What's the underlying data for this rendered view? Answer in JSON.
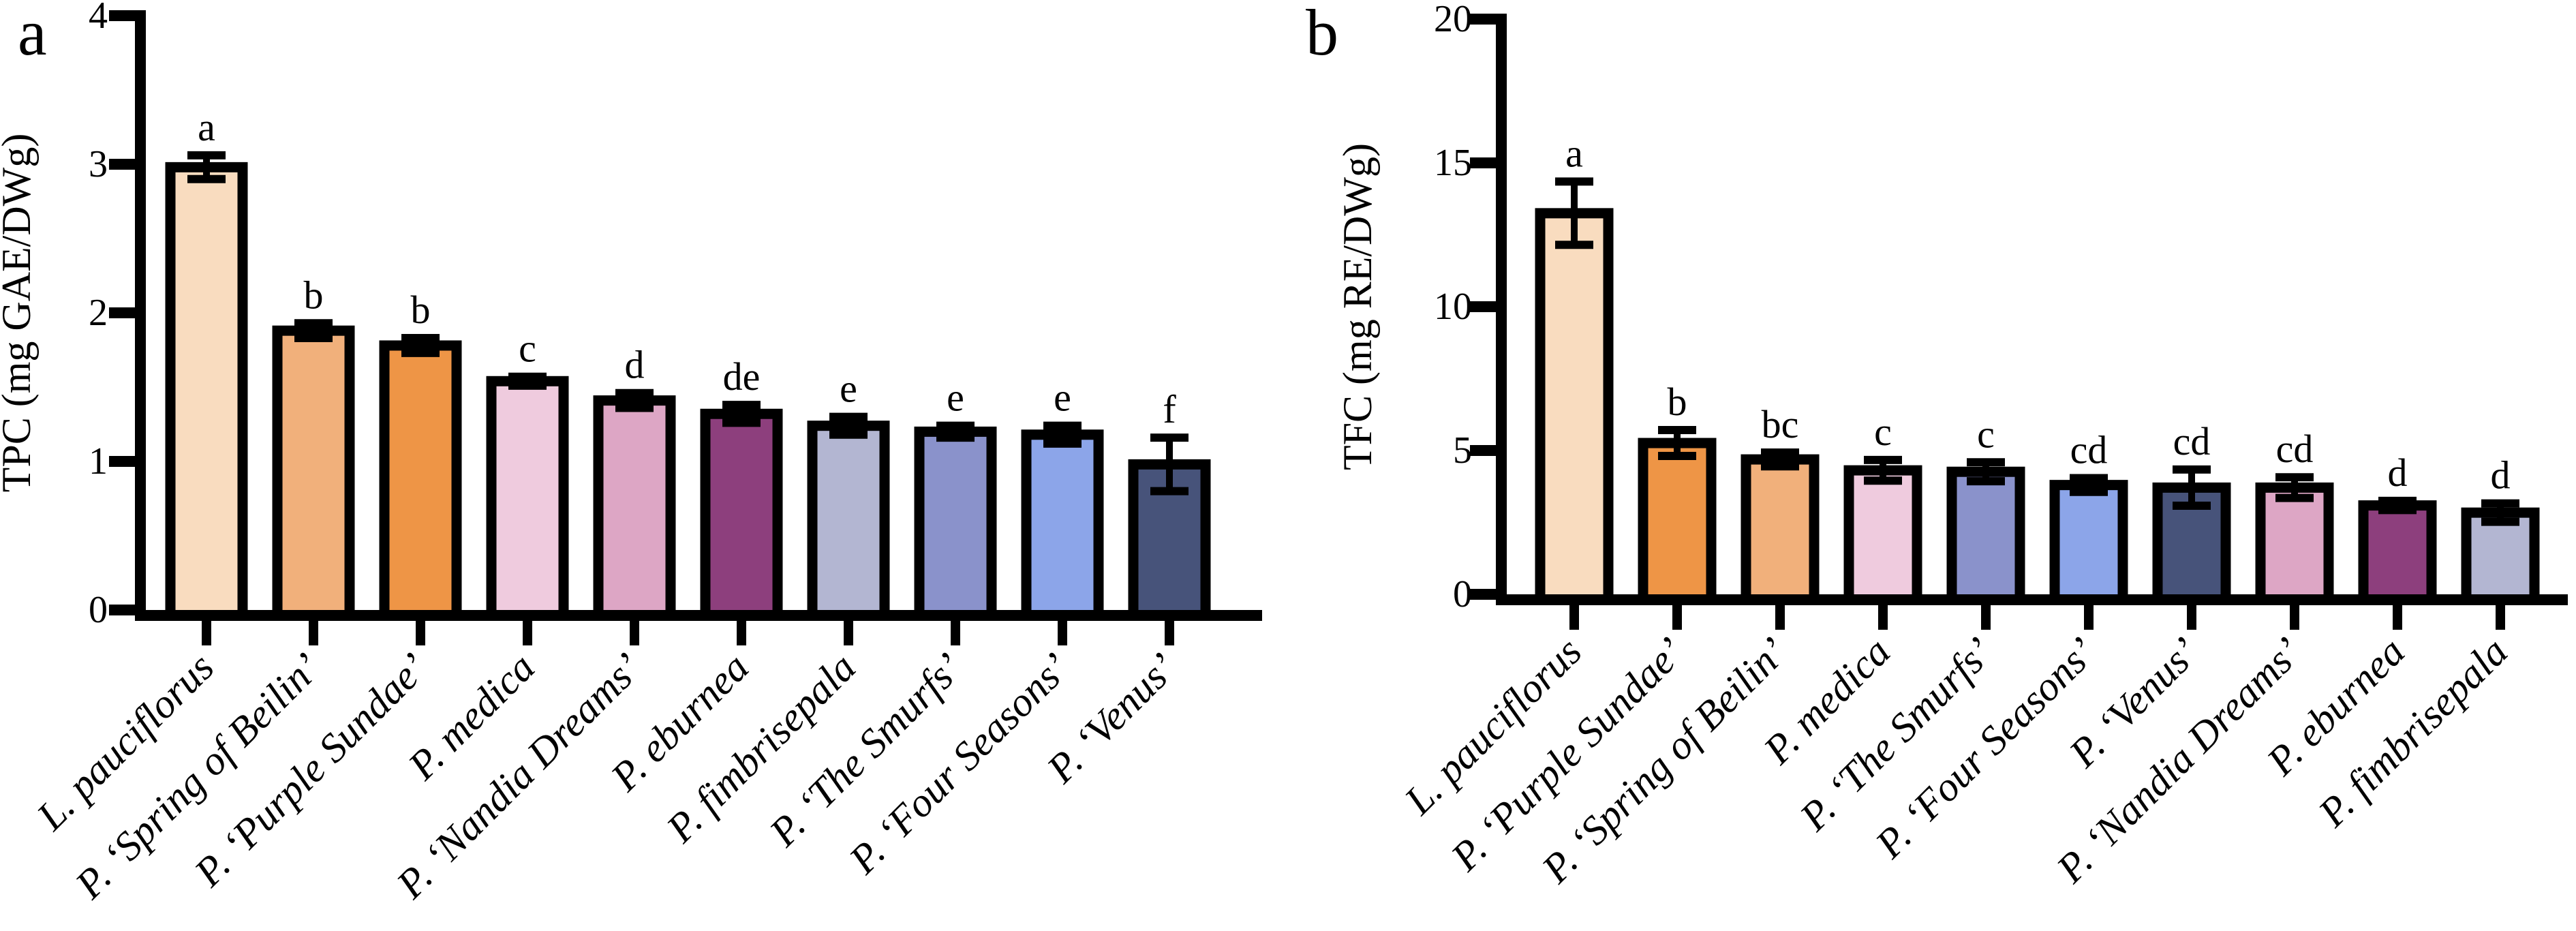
{
  "figure": {
    "background": "#ffffff",
    "text_color": "#000000"
  },
  "chart_data": [
    {
      "type": "bar",
      "panel_label": "a",
      "title": "",
      "xlabel": "",
      "ylabel": "TPC (mg GAE/DWg)",
      "ylim": [
        0,
        4
      ],
      "yticks": [
        0,
        1,
        2,
        3,
        4
      ],
      "grid": false,
      "legend": "none",
      "bar_border_color": "#000000",
      "error_bar_color": "#000000",
      "categories": [
        "L. pauciflorus",
        "P. ‘Spring of Beilin’",
        "P. ‘Purple Sundae’",
        "P. medica",
        "P. ‘Nandia Dreams’",
        "P. eburnea",
        "P. fimbrisepala",
        "P. ‘The Smurfs’",
        "P. ‘Four Seasons’",
        "P. ‘Venus’"
      ],
      "values": [
        2.98,
        1.88,
        1.78,
        1.54,
        1.41,
        1.32,
        1.24,
        1.2,
        1.18,
        0.98
      ],
      "errors": [
        0.08,
        0.05,
        0.05,
        0.03,
        0.05,
        0.06,
        0.06,
        0.04,
        0.06,
        0.18
      ],
      "sig_letters": [
        "a",
        "b",
        "b",
        "c",
        "d",
        "de",
        "e",
        "e",
        "e",
        "f"
      ],
      "bar_colors": [
        "#F9DCBF",
        "#F1B07B",
        "#EE9546",
        "#EFCBDE",
        "#DDA6C5",
        "#8D3F7D",
        "#B3B6D2",
        "#8A92CB",
        "#8CA5E9",
        "#47537A"
      ]
    },
    {
      "type": "bar",
      "panel_label": "b",
      "title": "",
      "xlabel": "",
      "ylabel": "TFC (mg RE/DWg)",
      "ylim": [
        0,
        20
      ],
      "yticks": [
        0,
        5,
        10,
        15,
        20
      ],
      "grid": false,
      "legend": "none",
      "bar_border_color": "#000000",
      "error_bar_color": "#000000",
      "categories": [
        "L. pauciflorus",
        "P. ‘Purple Sundae’",
        "P. ‘Spring of Beilin’",
        "P. medica",
        "P. ‘The Smurfs’",
        "P. ‘Four Seasons’",
        "P. ‘Venus’",
        "P. ‘Nandia Dreams’",
        "P. eburnea",
        "P. fimbrisepala"
      ],
      "values": [
        13.25,
        5.26,
        4.69,
        4.31,
        4.26,
        3.8,
        3.71,
        3.71,
        3.09,
        2.84
      ],
      "errors": [
        1.1,
        0.45,
        0.24,
        0.36,
        0.33,
        0.24,
        0.63,
        0.36,
        0.16,
        0.32
      ],
      "sig_letters": [
        "a",
        "b",
        "bc",
        "c",
        "c",
        "cd",
        "cd",
        "cd",
        "d",
        "d"
      ],
      "bar_colors": [
        "#F9DCBF",
        "#EE9546",
        "#F1B07B",
        "#EFCBDE",
        "#8A92CB",
        "#8CA5E9",
        "#47537A",
        "#DDA6C5",
        "#8D3F7D",
        "#B3B6D2"
      ]
    }
  ]
}
